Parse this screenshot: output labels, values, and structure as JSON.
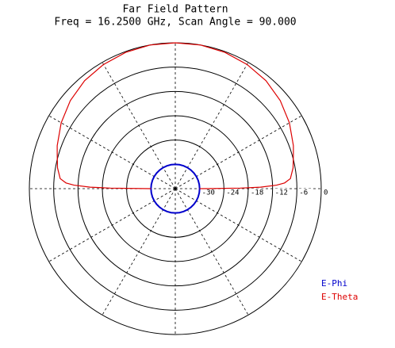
{
  "chart_data": {
    "type": "polar",
    "title": "Far Field Pattern",
    "subtitle": "Freq = 16.2500 GHz, Scan Angle = 90.000",
    "rlim": [
      -36,
      0
    ],
    "rticks": [
      -30,
      -24,
      -18,
      -12,
      -6,
      0
    ],
    "thetaticks": [
      0,
      30,
      60,
      90,
      120,
      150,
      180,
      210,
      240,
      270,
      300,
      330
    ],
    "legend": "lower right",
    "series": [
      {
        "name": "E-Phi",
        "color": "#0000cc",
        "x": [
          0,
          10,
          20,
          30,
          40,
          50,
          60,
          70,
          80,
          90,
          100,
          110,
          120,
          130,
          140,
          150,
          160,
          170,
          180,
          190,
          200,
          210,
          220,
          230,
          240,
          250,
          260,
          270,
          280,
          290,
          300,
          310,
          320,
          330,
          340,
          350,
          360
        ],
        "values": [
          -30,
          -30,
          -30,
          -30,
          -30,
          -30,
          -30,
          -30,
          -30,
          -30,
          -30,
          -30,
          -30,
          -30,
          -30,
          -30,
          -30,
          -30,
          -30,
          -30,
          -30,
          -30,
          -30,
          -30,
          -30,
          -30,
          -30,
          -30,
          -30,
          -30,
          -30,
          -30,
          -30,
          -30,
          -30,
          -30,
          -30
        ]
      },
      {
        "name": "E-Theta",
        "color": "#dd0000",
        "x": [
          0,
          0.5,
          1,
          2,
          3,
          5,
          10,
          16,
          20,
          30,
          40,
          50,
          60,
          70,
          80,
          90,
          100,
          110,
          120,
          130,
          140,
          150,
          160,
          164,
          170,
          175,
          177,
          178,
          179,
          179.5,
          180
        ],
        "values": [
          -30,
          -20,
          -15,
          -11,
          -9,
          -7.5,
          -6.5,
          -5.7,
          -5,
          -3.5,
          -2.2,
          -1.2,
          -0.6,
          -0.2,
          0,
          0,
          0,
          -0.2,
          -0.6,
          -1.2,
          -2.2,
          -3.5,
          -5,
          -5.7,
          -6.5,
          -7.5,
          -9,
          -11,
          -15,
          -20,
          -30
        ]
      }
    ]
  }
}
